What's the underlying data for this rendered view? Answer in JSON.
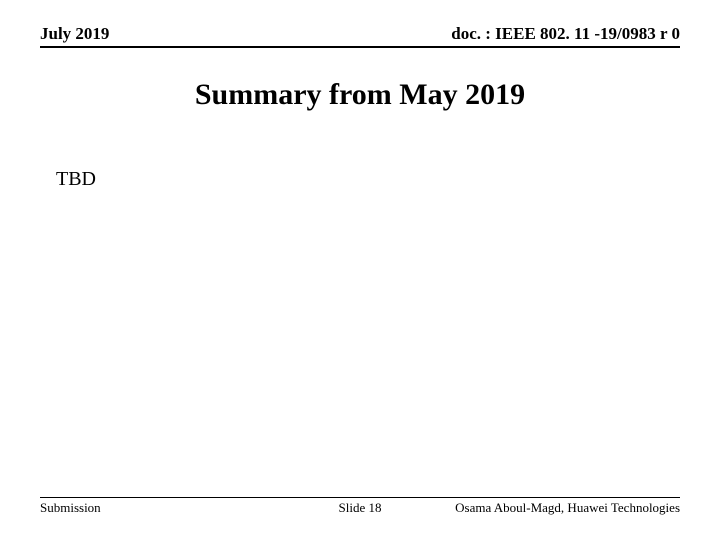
{
  "header": {
    "date": "July 2019",
    "doc_id": "doc. : IEEE 802. 11 -19/0983 r 0"
  },
  "title": "Summary from May 2019",
  "body": {
    "content": "TBD"
  },
  "footer": {
    "left": "Submission",
    "center": "Slide 18",
    "right": "Osama Aboul-Magd, Huawei Technologies"
  },
  "styles": {
    "background_color": "#ffffff",
    "text_color": "#000000",
    "rule_color": "#000000",
    "header_fontsize": 17,
    "title_fontsize": 30,
    "body_fontsize": 20,
    "footer_fontsize": 13,
    "font_family": "Times New Roman"
  }
}
